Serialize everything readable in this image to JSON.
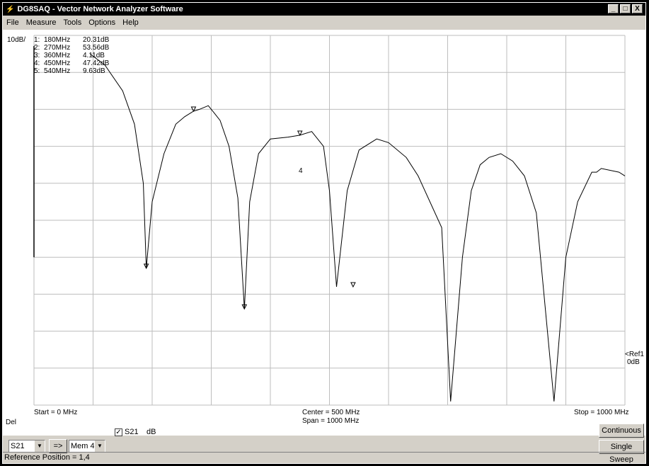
{
  "window": {
    "title": "DG8SAQ  -  Vector Network Analyzer Software",
    "icon": "vna-app-icon",
    "controls": [
      "_",
      "□",
      "X"
    ]
  },
  "menu": [
    "File",
    "Measure",
    "Tools",
    "Options",
    "Help"
  ],
  "plot": {
    "scale_label": "10dB/",
    "markers": [
      {
        "num": "1:",
        "freq": "180MHz",
        "val": "20.31dB"
      },
      {
        "num": "2:",
        "freq": "270MHz",
        "val": "53.56dB"
      },
      {
        "num": "3:",
        "freq": "360MHz",
        "val": "4.11dB"
      },
      {
        "num": "4:",
        "freq": "450MHz",
        "val": "47.42dB"
      },
      {
        "num": "5:",
        "freq": "540MHz",
        "val": "9.63dB"
      }
    ],
    "start_label": "Start = 0 MHz",
    "center_label": "Center = 500 MHz",
    "span_label": "Span = 1000 MHz",
    "stop_label": "Stop = 1000 MHz",
    "ref_label": "<Ref1",
    "ref_value": "0dB",
    "del_label": "Del",
    "marker_tag": "4",
    "colors": {
      "trace": "#000000",
      "grid": "#bdbdbd",
      "background": "#ffffff"
    }
  },
  "chart_data": {
    "type": "line",
    "title": "",
    "xlabel": "",
    "ylabel": "",
    "xlim": [
      0,
      1000
    ],
    "ylim": [
      -100,
      0
    ],
    "series": [
      {
        "name": "S21",
        "x": [
          95,
          120,
          150,
          170,
          185,
          190,
          200,
          220,
          240,
          255,
          270,
          280,
          295,
          305,
          315,
          330,
          345,
          356,
          365,
          380,
          400,
          430,
          450,
          470,
          490,
          500,
          512,
          530,
          550,
          580,
          600,
          630,
          650,
          690,
          705,
          725,
          740,
          755,
          770,
          790,
          810,
          830,
          850,
          880,
          900,
          920,
          944,
          952,
          960,
          990,
          1000
        ],
        "y": [
          -5,
          -8,
          -15,
          -24,
          -40,
          -63,
          -45,
          -32,
          -24,
          -22,
          -20.5,
          -20,
          -19,
          -21,
          -23,
          -30,
          -44,
          -74,
          -45,
          -32,
          -28,
          -27.5,
          -27,
          -26,
          -30,
          -42,
          -68,
          -42,
          -31,
          -28,
          -29,
          -33,
          -38,
          -52,
          -99,
          -60,
          -42,
          -35,
          -33,
          -32,
          -34,
          -38,
          -48,
          -99,
          -60,
          -45,
          -37,
          -37,
          -36,
          -37,
          -38
        ]
      }
    ]
  },
  "checkbox": {
    "checked_mark": "✓",
    "label": "S21",
    "unit": "dB"
  },
  "combo_s21": "S21",
  "arrow_btn": "=>",
  "combo_mem": "Mem 4",
  "buttons": {
    "continuous": "Continuous",
    "single": "Single Sweep"
  },
  "status": "Reference Position = 1,4"
}
